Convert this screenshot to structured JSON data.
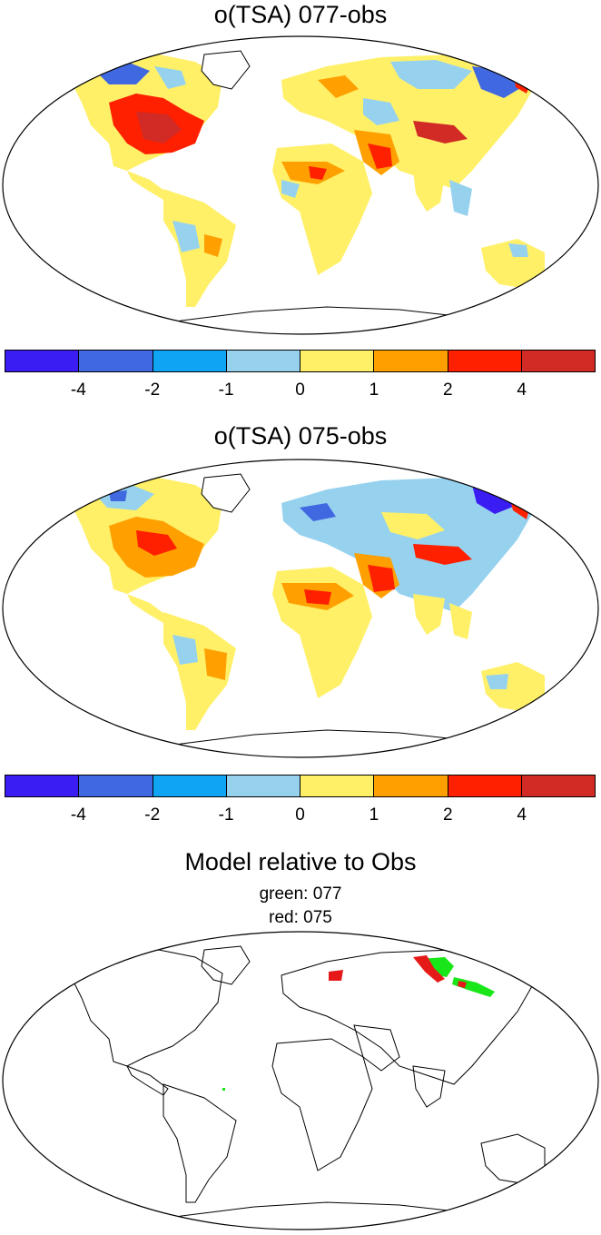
{
  "panels": [
    {
      "title": "o(TSA) 077-obs"
    },
    {
      "title": "o(TSA) 075-obs"
    }
  ],
  "comparison": {
    "title": "Model relative to Obs",
    "legend_green": "green: 077",
    "legend_red": "red: 075",
    "green_color": "#19e619",
    "red_color": "#e61919"
  },
  "colorbar": {
    "colors": [
      "#3a1df2",
      "#4068e0",
      "#10a4f4",
      "#96d2ee",
      "#fff068",
      "#ffa000",
      "#ff2000",
      "#d22a24"
    ],
    "tick_labels": [
      "-4",
      "-2",
      "-1",
      "0",
      "1",
      "2",
      "4"
    ]
  },
  "legend_icon_colors": {
    "land_neutral": "#fff068"
  }
}
